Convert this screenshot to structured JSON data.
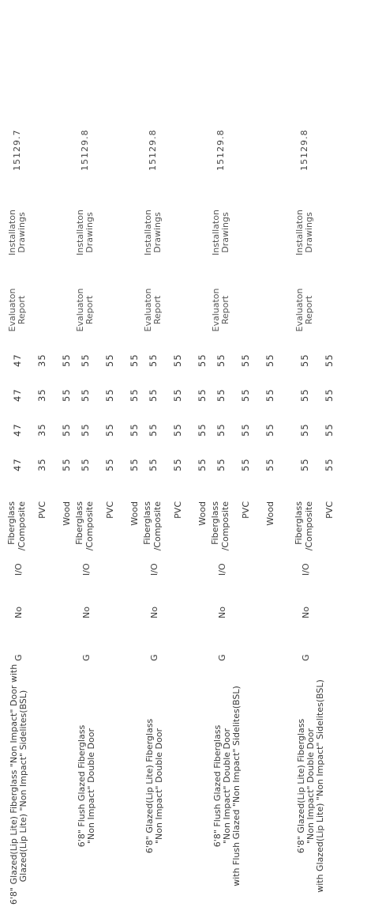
{
  "rows": [
    {
      "description": [
        "6'8\" Glazed(Lip Lite) Fiberglass \"Non Impact\" Door with",
        "Glazed(Lip Lite) \"Non Impact\" Sidelites(BSL)"
      ],
      "g": "G",
      "impact": "No",
      "io": "I/O",
      "materials": [
        {
          "name": [
            "Fiberglass",
            "/Composite"
          ],
          "v": [
            "47",
            "47",
            "47",
            "47"
          ]
        },
        {
          "name": [
            "PVC"
          ],
          "v": [
            "35",
            "35",
            "35",
            "35"
          ]
        },
        {
          "name": [
            "Wood"
          ],
          "v": [
            "55",
            "55",
            "55",
            "55"
          ]
        }
      ],
      "report": [
        "Evaluaton",
        "Report"
      ],
      "drawings": [
        "Installaton",
        "Drawings"
      ],
      "code": "15129.7"
    },
    {
      "description": [
        "6'8\" Flush Glazed Fiberglass",
        "\"Non Impact\" Double Door"
      ],
      "g": "G",
      "impact": "No",
      "io": "I/O",
      "materials": [
        {
          "name": [
            "Fiberglass",
            "/Composite"
          ],
          "v": [
            "55",
            "55",
            "55",
            "55"
          ]
        },
        {
          "name": [
            "PVC"
          ],
          "v": [
            "55",
            "55",
            "55",
            "55"
          ]
        },
        {
          "name": [
            "Wood"
          ],
          "v": [
            "55",
            "55",
            "55",
            "55"
          ]
        }
      ],
      "report": [
        "Evaluaton",
        "Report"
      ],
      "drawings": [
        "Installaton",
        "Drawings"
      ],
      "code": "15129.8"
    },
    {
      "description": [
        "6'8\" Glazed(Lip Lite) Fiberglass",
        "\"Non Impact\" Double Door"
      ],
      "g": "G",
      "impact": "No",
      "io": "I/O",
      "materials": [
        {
          "name": [
            "Fiberglass",
            "/Composite"
          ],
          "v": [
            "55",
            "55",
            "55",
            "55"
          ]
        },
        {
          "name": [
            "PVC"
          ],
          "v": [
            "55",
            "55",
            "55",
            "55"
          ]
        },
        {
          "name": [
            "Wood"
          ],
          "v": [
            "55",
            "55",
            "55",
            "55"
          ]
        }
      ],
      "report": [
        "Evaluaton",
        "Report"
      ],
      "drawings": [
        "Installaton",
        "Drawings"
      ],
      "code": "15129.8"
    },
    {
      "description": [
        "6'8\" Flush Glazed Fiberglass",
        "\"Non Impact\" Double Door",
        "with Flush Glazed \"Non Impact\" Sidelites(BSL)"
      ],
      "g": "G",
      "impact": "No",
      "io": "I/O",
      "materials": [
        {
          "name": [
            "Fiberglass",
            "/Composite"
          ],
          "v": [
            "55",
            "55",
            "55",
            "55"
          ]
        },
        {
          "name": [
            "PVC"
          ],
          "v": [
            "55",
            "55",
            "55",
            "55"
          ]
        },
        {
          "name": [
            "Wood"
          ],
          "v": [
            "55",
            "55",
            "55",
            "55"
          ]
        }
      ],
      "report": [
        "Evaluaton",
        "Report"
      ],
      "drawings": [
        "Installaton",
        "Drawings"
      ],
      "code": "15129.8"
    },
    {
      "description": [
        "6'8\" Glazed(Lip Lite) Fiberglass",
        "\"Non Impact\" Double Door",
        "with Glazed(Lip Lite) \"Non Impact\" Sidelites(BSL)"
      ],
      "g": "G",
      "impact": "No",
      "io": "I/O",
      "materials": [
        {
          "name": [
            "Fiberglass",
            "/Composite"
          ],
          "v": [
            "55",
            "55",
            "55",
            "55"
          ]
        },
        {
          "name": [
            "PVC"
          ],
          "v": [
            "55",
            "55",
            "55",
            "55"
          ]
        }
      ],
      "report": [
        "Evaluaton",
        "Report"
      ],
      "drawings": [
        "Installaton",
        "Drawings"
      ],
      "code": "15129.8"
    }
  ]
}
